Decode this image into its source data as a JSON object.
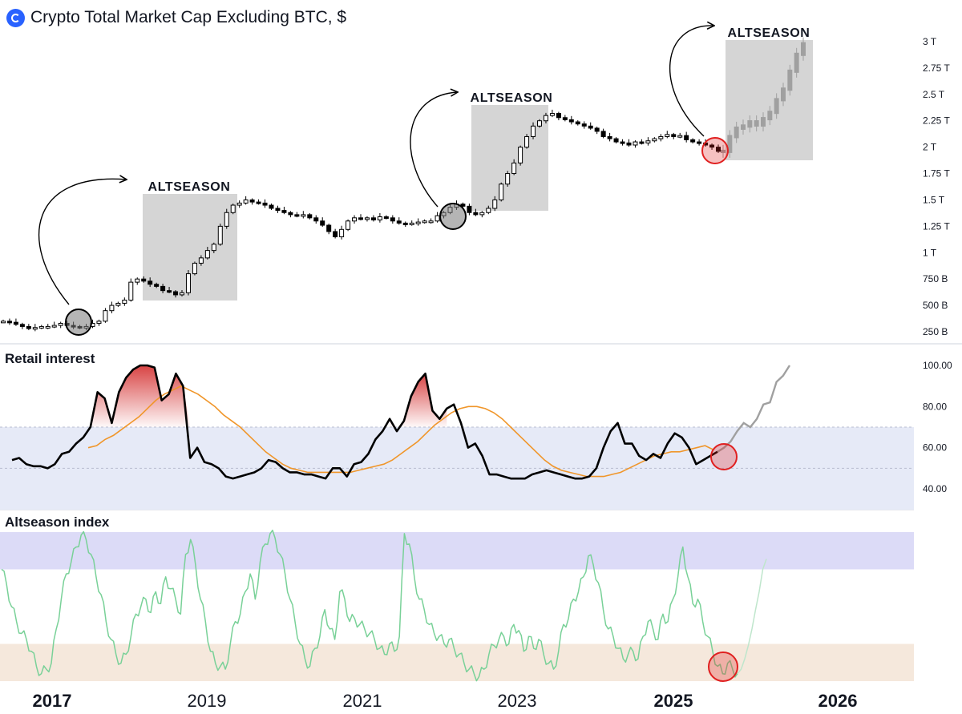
{
  "header": {
    "title": "Crypto Total Market Cap Excluding BTC, $",
    "logo_icon": "crypto-logo-icon"
  },
  "panels": {
    "retail_title": "Retail interest",
    "altseason_title": "Altseason index"
  },
  "annotations": [
    "ALTSEASON",
    "ALTSEASON",
    "ALTSEASON"
  ],
  "colors": {
    "candle": "#000000",
    "projection": "#a0a0a0",
    "highlight_box": "#d3d3d3",
    "circle_gray": "#a9a9a9",
    "circle_red": "#e02020",
    "ma_line": "#f0962a",
    "band_blue": "#e6eaf7",
    "band_purple": "#dcdbf7",
    "band_orange": "#f5e8dc",
    "index_line": "#79d198",
    "peak_fill": "#d63a3a"
  },
  "chart_data": [
    {
      "type": "candlestick",
      "title": "Crypto Total Market Cap Excluding BTC, $",
      "x_ticks": [
        "2017",
        "2019",
        "2021",
        "2023",
        "2025",
        "2026"
      ],
      "y_ticks": [
        "250 B",
        "500 B",
        "750 B",
        "1 T",
        "1.25 T",
        "1.5 T",
        "1.75 T",
        "2 T",
        "2.25 T",
        "2.5 T",
        "2.75 T",
        "3 T"
      ],
      "ylim_trillions": [
        0.22,
        3.0
      ],
      "series": [
        {
          "values_trillions": [
            0.35,
            0.34,
            0.32,
            0.3,
            0.28,
            0.29,
            0.3,
            0.3,
            0.31,
            0.33,
            0.31,
            0.3,
            0.29,
            0.3,
            0.33,
            0.35,
            0.45,
            0.5,
            0.52,
            0.55,
            0.72,
            0.75,
            0.73,
            0.7,
            0.68,
            0.64,
            0.63,
            0.6,
            0.62,
            0.8,
            0.9,
            0.95,
            1.02,
            1.08,
            1.25,
            1.38,
            1.45,
            1.47,
            1.5,
            1.48,
            1.47,
            1.45,
            1.42,
            1.4,
            1.38,
            1.36,
            1.35,
            1.36,
            1.33,
            1.3,
            1.26,
            1.2,
            1.15,
            1.22,
            1.3,
            1.33,
            1.32,
            1.33,
            1.31,
            1.34,
            1.33,
            1.3,
            1.28,
            1.27,
            1.28,
            1.29,
            1.3,
            1.3,
            1.35,
            1.38,
            1.43,
            1.46,
            1.44,
            1.38,
            1.36,
            1.38,
            1.42,
            1.5,
            1.65,
            1.75,
            1.85,
            2.0,
            2.1,
            2.2,
            2.25,
            2.3,
            2.32,
            2.28,
            2.26,
            2.24,
            2.22,
            2.2,
            2.18,
            2.15,
            2.1,
            2.08,
            2.05,
            2.04,
            2.02,
            2.05,
            2.04,
            2.06,
            2.08,
            2.1,
            2.12,
            2.1,
            2.11,
            2.07,
            2.05,
            2.04,
            2.02,
            2.0,
            1.96
          ],
          "projection_trillions": [
            1.96,
            2.1,
            2.18,
            2.2,
            2.24,
            2.21,
            2.27,
            2.33,
            2.45,
            2.55,
            2.72,
            2.88,
            2.98
          ]
        }
      ],
      "highlights": [
        {
          "label": "ALTSEASON",
          "x_range": [
            "2018",
            "2019"
          ]
        },
        {
          "label": "ALTSEASON",
          "x_range": [
            "2022",
            "2023"
          ]
        },
        {
          "label": "ALTSEASON",
          "x_range": [
            "2025",
            "2026"
          ]
        }
      ]
    },
    {
      "type": "line",
      "title": "Retail interest",
      "y_ticks": [
        "40.00",
        "60.00",
        "80.00",
        "100.00"
      ],
      "ylim": [
        30,
        102
      ],
      "band": [
        30,
        70
      ],
      "series": [
        {
          "values": [
            54,
            55,
            52,
            51,
            51,
            50,
            52,
            57,
            58,
            62,
            65,
            70,
            87,
            84,
            72,
            87,
            94,
            98,
            100,
            100,
            99,
            83,
            86,
            96,
            90,
            55,
            60,
            53,
            52,
            50,
            46,
            45,
            46,
            47,
            48,
            50,
            54,
            53,
            50,
            48,
            48,
            47,
            47,
            46,
            45,
            50,
            50,
            46,
            52,
            53,
            57,
            64,
            68,
            74,
            68,
            73,
            85,
            92,
            96,
            78,
            74,
            79,
            81,
            72,
            60,
            62,
            56,
            47,
            47,
            46,
            45,
            45,
            45,
            47,
            48,
            49,
            48,
            47,
            46,
            45,
            45,
            46,
            50,
            60,
            68,
            72,
            62,
            62,
            56,
            54,
            57,
            55,
            62,
            67,
            65,
            60,
            52,
            54,
            56,
            58
          ]
        },
        {
          "values": [
            60,
            61,
            64,
            66,
            69,
            72,
            75,
            79,
            83,
            86,
            88,
            90,
            88,
            86,
            83,
            80,
            76,
            73,
            70,
            66,
            62,
            58,
            55,
            52,
            50,
            49,
            48,
            48,
            48,
            48,
            48,
            48,
            49,
            50,
            51,
            52,
            54,
            57,
            60,
            63,
            67,
            71,
            74,
            77,
            79,
            80,
            80,
            79,
            77,
            74,
            70,
            66,
            62,
            58,
            54,
            51,
            49,
            48,
            47,
            46,
            46,
            46,
            47,
            48,
            50,
            52,
            54,
            56,
            57,
            58,
            58,
            59,
            60,
            61,
            59
          ]
        },
        {
          "values": [
            58,
            60,
            63,
            68,
            72,
            70,
            74,
            81,
            82,
            92,
            95,
            100
          ]
        }
      ]
    },
    {
      "type": "line",
      "title": "Altseason index",
      "bands": {
        "top": [
          75,
          100
        ],
        "bottom": [
          0,
          25
        ]
      },
      "ylim": [
        0,
        100
      ],
      "series": [
        {
          "values": [
            75,
            65,
            50,
            40,
            32,
            28,
            20,
            10,
            5,
            8,
            12,
            35,
            55,
            72,
            80,
            90,
            98,
            95,
            85,
            70,
            58,
            40,
            28,
            18,
            12,
            18,
            30,
            45,
            50,
            55,
            46,
            60,
            52,
            70,
            62,
            55,
            45,
            85,
            95,
            78,
            55,
            40,
            20,
            12,
            10,
            8,
            25,
            40,
            45,
            60,
            72,
            55,
            80,
            92,
            99,
            96,
            85,
            72,
            55,
            40,
            25,
            15,
            10,
            22,
            30,
            48,
            35,
            28,
            60,
            55,
            40,
            42,
            38,
            35,
            32,
            28,
            22,
            18,
            25,
            20,
            30,
            99,
            92,
            70,
            55,
            48,
            38,
            32,
            30,
            25,
            28,
            22,
            18,
            12,
            8,
            5,
            3,
            8,
            18,
            24,
            28,
            30,
            25,
            38,
            34,
            20,
            30,
            22,
            28,
            18,
            12,
            8,
            20,
            38,
            42,
            55,
            60,
            70,
            84,
            78,
            66,
            48,
            35,
            30,
            22,
            15,
            18,
            20,
            15,
            30,
            40,
            35,
            28,
            45,
            40,
            55,
            70,
            90,
            70,
            52,
            55,
            40,
            30,
            20,
            10,
            5,
            12,
            8,
            5
          ]
        },
        {
          "values": [
            5,
            8,
            15,
            24,
            35,
            48,
            60,
            75,
            82
          ]
        }
      ]
    }
  ]
}
